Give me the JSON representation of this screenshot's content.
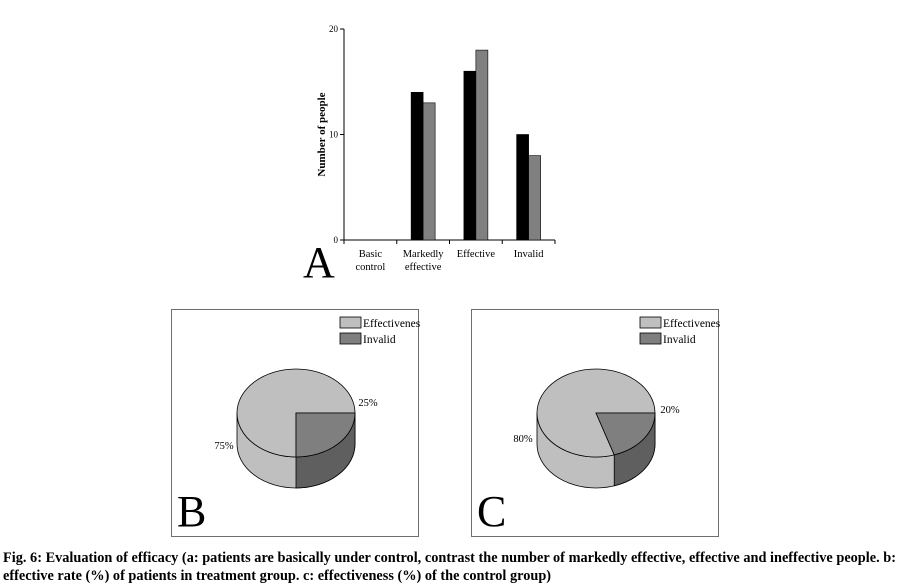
{
  "colors": {
    "treatment": "#000000",
    "control": "#808080",
    "effectiveness": "#bfbfbf",
    "invalid": "#7f7f7f",
    "axis": "#000000"
  },
  "chart_data": [
    {
      "panel": "A",
      "type": "bar",
      "ylabel": "Number of people",
      "ylim": [
        0,
        20
      ],
      "yticks": [
        "0",
        "10",
        "20"
      ],
      "categories": [
        [
          "Basic",
          "control"
        ],
        [
          "Markedly",
          "effective"
        ],
        [
          "Effective"
        ],
        [
          "Invalid"
        ]
      ],
      "series": [
        {
          "color": "#000000",
          "values": [
            0,
            14,
            16,
            10
          ]
        },
        {
          "color": "#808080",
          "values": [
            0,
            13,
            18,
            8
          ]
        }
      ],
      "grid": false
    },
    {
      "panel": "B",
      "type": "pie",
      "labels": [
        "Effectiveness",
        "Invalid"
      ],
      "values": [
        75,
        25
      ],
      "value_labels": [
        "75%",
        "25%"
      ],
      "legend": "top-right"
    },
    {
      "panel": "C",
      "type": "pie",
      "labels": [
        "Effectiveness",
        "Invalid"
      ],
      "values": [
        80,
        20
      ],
      "value_labels": [
        "80%",
        "20%"
      ],
      "legend": "top-right"
    }
  ],
  "caption": "Fig. 6: Evaluation of efficacy (a: patients are basically under control, contrast the number of markedly effective, effective and ineffective people. b: effective rate (%) of patients in treatment group. c: effectiveness (%) of the control group)"
}
